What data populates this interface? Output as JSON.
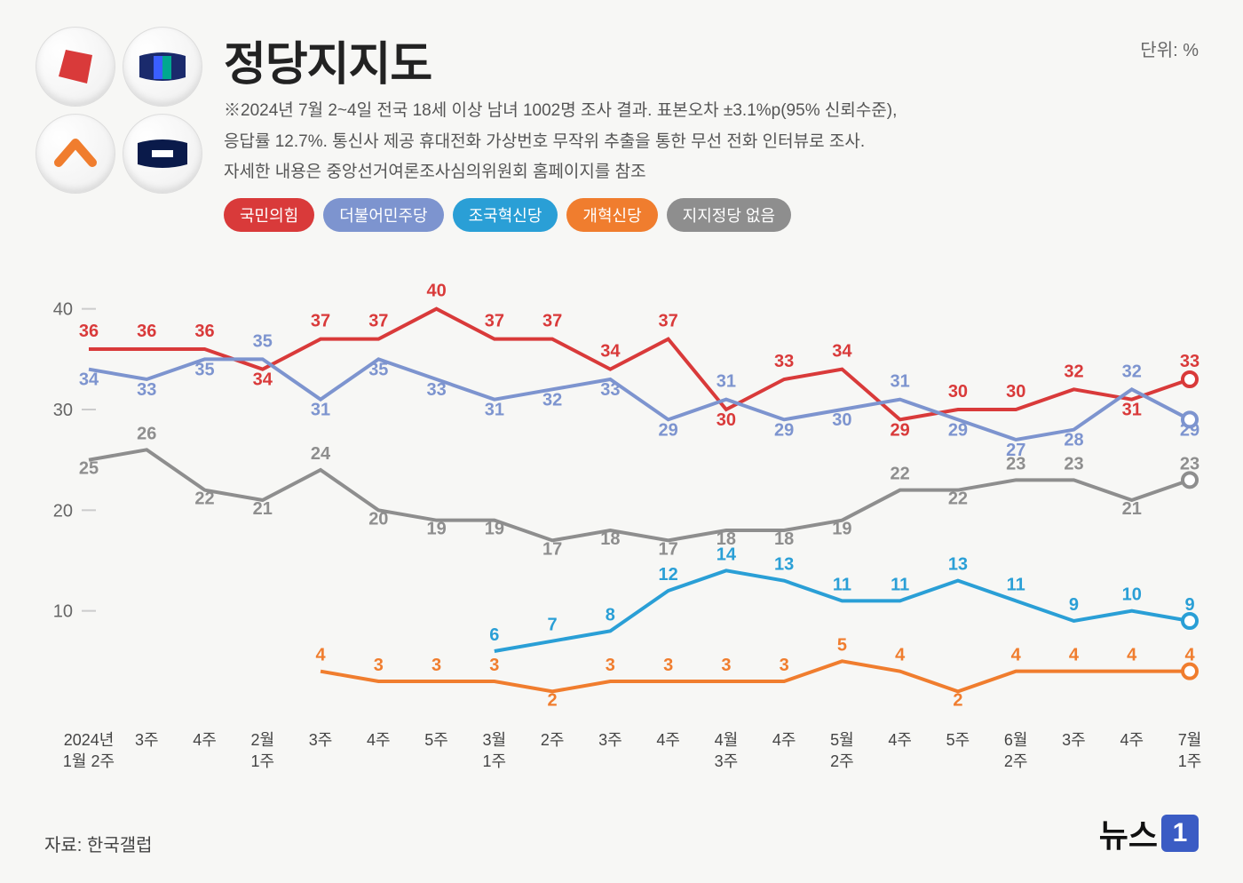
{
  "title": "정당지지도",
  "subtitle_l1": "※2024년 7월 2~4일 전국 18세 이상 남녀 1002명 조사 결과. 표본오차 ±3.1%p(95% 신뢰수준),",
  "subtitle_l2": "응답률 12.7%. 통신사 제공 휴대전화 가상번호 무작위 추출을 통한 무선 전화 인터뷰로 조사.",
  "subtitle_l3": "자세한 내용은 중앙선거여론조사심의위원회 홈페이지를 참조",
  "unit": "단위: %",
  "source": "자료: 한국갤럽",
  "news_brand": "뉴스",
  "news_one": "1",
  "legend": [
    {
      "label": "국민의힘",
      "color": "#d93a3a"
    },
    {
      "label": "더불어민주당",
      "color": "#7d94cf"
    },
    {
      "label": "조국혁신당",
      "color": "#2a9fd6"
    },
    {
      "label": "개혁신당",
      "color": "#f07d2e"
    },
    {
      "label": "지지정당 없음",
      "color": "#8e8e8e"
    }
  ],
  "chart": {
    "type": "line",
    "ylim": [
      0,
      45
    ],
    "yticks": [
      10,
      20,
      30,
      40
    ],
    "x_labels_top": [
      "2024년",
      "3주",
      "4주",
      "2월",
      "3주",
      "4주",
      "5주",
      "3월",
      "2주",
      "3주",
      "4주",
      "4월",
      "4주",
      "5월",
      "4주",
      "5주",
      "6월",
      "3주",
      "4주",
      "7월"
    ],
    "x_labels_bot": [
      "1월 2주",
      "",
      "",
      "1주",
      "",
      "",
      "",
      "1주",
      "",
      "",
      "",
      "3주",
      "",
      "2주",
      "",
      "",
      "2주",
      "",
      "",
      "1주"
    ],
    "background_color": "#f7f7f5",
    "grid_color": "#ccc",
    "line_width": 4,
    "label_fontsize": 20,
    "end_marker_radius": 8,
    "series": [
      {
        "name": "국민의힘",
        "color": "#d93a3a",
        "start": 0,
        "values": [
          36,
          36,
          36,
          34,
          37,
          37,
          40,
          37,
          37,
          34,
          37,
          30,
          33,
          34,
          29,
          30,
          30,
          32,
          31,
          33
        ],
        "label_offsets": [
          -14,
          -14,
          -14,
          18,
          -14,
          -14,
          -14,
          -14,
          -14,
          -14,
          -14,
          18,
          -14,
          -14,
          18,
          -14,
          -14,
          -14,
          18,
          -14
        ]
      },
      {
        "name": "더불어민주당",
        "color": "#7d94cf",
        "start": 0,
        "values": [
          34,
          33,
          35,
          35,
          31,
          35,
          33,
          31,
          32,
          33,
          29,
          31,
          29,
          30,
          31,
          29,
          27,
          28,
          32,
          29
        ],
        "label_offsets": [
          18,
          18,
          18,
          -14,
          18,
          18,
          18,
          18,
          18,
          18,
          18,
          -14,
          18,
          18,
          -14,
          18,
          18,
          18,
          -14,
          18
        ]
      },
      {
        "name": "조국혁신당",
        "color": "#2a9fd6",
        "start": 7,
        "values": [
          6,
          7,
          8,
          12,
          14,
          13,
          11,
          11,
          13,
          11,
          9,
          10,
          9
        ],
        "label_offsets": [
          -12,
          -12,
          -12,
          -12,
          -12,
          -12,
          -12,
          -12,
          -12,
          -12,
          -12,
          -12,
          -12
        ]
      },
      {
        "name": "개혁신당",
        "color": "#f07d2e",
        "start": 4,
        "values": [
          4,
          3,
          3,
          3,
          2,
          3,
          3,
          3,
          3,
          5,
          4,
          2,
          4,
          4,
          4,
          4
        ],
        "label_offsets": [
          -12,
          -12,
          -12,
          -12,
          16,
          -12,
          -12,
          -12,
          -12,
          -12,
          -12,
          16,
          -12,
          -12,
          -12,
          -12
        ]
      },
      {
        "name": "지지정당 없음",
        "color": "#8e8e8e",
        "start": 0,
        "values": [
          25,
          26,
          22,
          21,
          24,
          20,
          19,
          19,
          17,
          18,
          17,
          18,
          18,
          19,
          22,
          22,
          23,
          23,
          21,
          23
        ],
        "label_offsets": [
          16,
          -12,
          16,
          16,
          -12,
          16,
          16,
          16,
          16,
          16,
          16,
          16,
          16,
          16,
          -12,
          16,
          -12,
          -12,
          16,
          -12
        ]
      }
    ]
  }
}
